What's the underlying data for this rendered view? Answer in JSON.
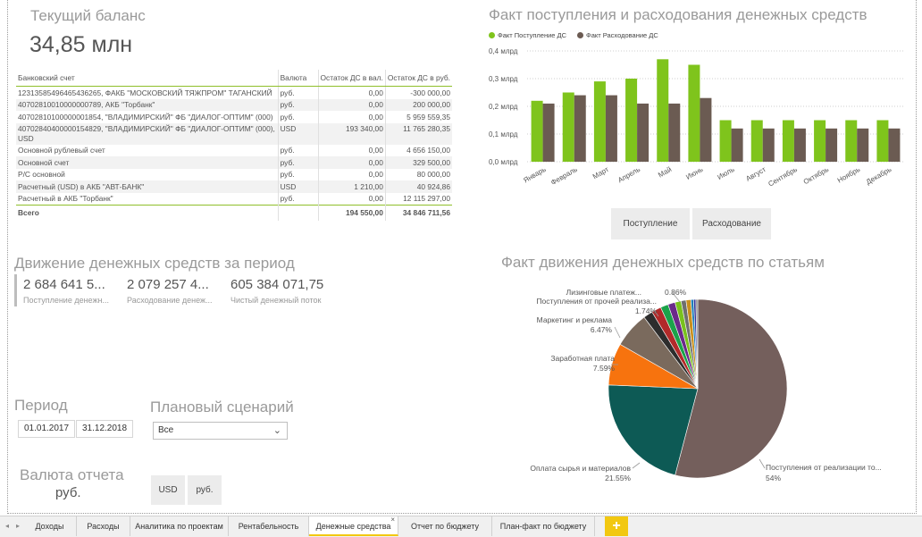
{
  "balance": {
    "title": "Текущий баланс",
    "value": "34,85 млн",
    "columns": [
      "Банковский счет",
      "Валюта",
      "Остаток ДС в вал.",
      "Остаток ДС в руб."
    ],
    "rows": [
      {
        "account": "12313585496465436265, ФАКБ \"МОСКОВСКИЙ ТЯЖПРОМ\" ТАГАНСКИЙ",
        "currency": "руб.",
        "in_currency": "0,00",
        "in_rub": "-300 000,00"
      },
      {
        "account": "40702810010000000789, АКБ \"Торбанк\"",
        "currency": "руб.",
        "in_currency": "0,00",
        "in_rub": "200 000,00"
      },
      {
        "account": "40702810100000001854, \"ВЛАДИМИРСКИЙ\" ФБ \"ДИАЛОГ-ОПТИМ\" (000)",
        "currency": "руб.",
        "in_currency": "0,00",
        "in_rub": "5 959 559,35"
      },
      {
        "account": "40702840400000154829, \"ВЛАДИМИРСКИЙ\" ФБ \"ДИАЛОГ-ОПТИМ\" (000), USD",
        "currency": "USD",
        "in_currency": "193 340,00",
        "in_rub": "11 765 280,35"
      },
      {
        "account": "Основной рублевый счет",
        "currency": "руб.",
        "in_currency": "0,00",
        "in_rub": "4 656 150,00"
      },
      {
        "account": "Основной счет",
        "currency": "руб.",
        "in_currency": "0,00",
        "in_rub": "329 500,00"
      },
      {
        "account": "Р/С основной",
        "currency": "руб.",
        "in_currency": "0,00",
        "in_rub": "80 000,00"
      },
      {
        "account": "Расчетный (USD) в АКБ \"АВТ-БАНК\"",
        "currency": "USD",
        "in_currency": "1 210,00",
        "in_rub": "40 924,86"
      },
      {
        "account": "Расчетный в АКБ \"Торбанк\"",
        "currency": "руб.",
        "in_currency": "0,00",
        "in_rub": "12 115 297,00"
      }
    ],
    "total": {
      "label": "Всего",
      "in_currency": "194 550,00",
      "in_rub": "34 846 711,56"
    }
  },
  "movement": {
    "title": "Движение денежных средств за период",
    "kpis": [
      {
        "value": "2 684 641 5...",
        "label": "Поступление денежн..."
      },
      {
        "value": "2 079 257 4...",
        "label": "Расходование денеж..."
      },
      {
        "value": "605 384 071,75",
        "label": "Чистый денежный поток"
      }
    ]
  },
  "period": {
    "title": "Период",
    "from": "01.01.2017",
    "to": "31.12.2018"
  },
  "scenario": {
    "title": "Плановый сценарий",
    "value": "Все"
  },
  "currency": {
    "title": "Валюта отчета",
    "value": "руб.",
    "buttons": [
      "USD",
      "руб."
    ]
  },
  "bar_chart": {
    "title": "Факт поступления и расходования денежных средств",
    "toggle_buttons": [
      "Поступление",
      "Расходование"
    ],
    "colors": {
      "income": "#7fc41c",
      "expense": "#6b5b52"
    }
  },
  "pie_chart": {
    "title": "Факт движения денежных средств по статьям",
    "colors": {
      "main": "#745f5c",
      "raw": "#0d5a55",
      "salary": "#f7730e",
      "marketing": "#7a6a5d",
      "other": "#8a7a70"
    }
  },
  "chart_data": [
    {
      "type": "bar",
      "title": "Факт поступления и расходования денежных средств",
      "categories": [
        "Январь",
        "Февраль",
        "Март",
        "Апрель",
        "Май",
        "Июнь",
        "Июль",
        "Август",
        "Сентябрь",
        "Октябрь",
        "Ноябрь",
        "Декабрь"
      ],
      "series": [
        {
          "name": "Факт Поступление ДС",
          "values": [
            0.22,
            0.25,
            0.29,
            0.3,
            0.37,
            0.35,
            0.15,
            0.15,
            0.15,
            0.15,
            0.15,
            0.15
          ]
        },
        {
          "name": "Факт Расходование ДС",
          "values": [
            0.21,
            0.24,
            0.24,
            0.21,
            0.21,
            0.23,
            0.12,
            0.12,
            0.12,
            0.12,
            0.12,
            0.12
          ]
        }
      ],
      "y_ticks": [
        "0,0 млрд",
        "0,1 млрд",
        "0,2 млрд",
        "0,3 млрд",
        "0,4 млрд"
      ],
      "ylim": [
        0,
        0.4
      ],
      "legend": "top-left",
      "grid": true
    },
    {
      "type": "pie",
      "title": "Факт движения денежных средств по статьям",
      "slices": [
        {
          "label": "Поступления от реализации то...",
          "pct_label": "54%",
          "value": 54.0,
          "color": "#745f5c"
        },
        {
          "label": "Оплата сырья и материалов",
          "pct_label": "21.55%",
          "value": 21.55,
          "color": "#0d5a55"
        },
        {
          "label": "Заработная плата",
          "pct_label": "7.59%",
          "value": 7.59,
          "color": "#f7730e"
        },
        {
          "label": "Маркетинг и реклама",
          "pct_label": "6.47%",
          "value": 6.47,
          "color": "#7a6a5d"
        },
        {
          "label": "",
          "pct_label": "",
          "value": 1.7,
          "color": "#2d2d2d"
        },
        {
          "label": "Поступления от прочей реализа...",
          "pct_label": "1.74%",
          "value": 1.74,
          "color": "#b22a2a"
        },
        {
          "label": "",
          "pct_label": "",
          "value": 1.4,
          "color": "#1ba34a"
        },
        {
          "label": "",
          "pct_label": "",
          "value": 1.3,
          "color": "#6b2a8a"
        },
        {
          "label": "",
          "pct_label": "",
          "value": 1.1,
          "color": "#79c11d"
        },
        {
          "label": "",
          "pct_label": "",
          "value": 0.9,
          "color": "#6f6f6f"
        },
        {
          "label": "Лизинговые платеж...",
          "pct_label": "0.86%",
          "value": 0.86,
          "color": "#c98f1c"
        },
        {
          "label": "",
          "pct_label": "",
          "value": 0.5,
          "color": "#1e7fb8"
        },
        {
          "label": "",
          "pct_label": "",
          "value": 0.4,
          "color": "#333399"
        },
        {
          "label": "",
          "pct_label": "",
          "value": 0.34,
          "color": "#888888"
        }
      ]
    }
  ],
  "tabs": {
    "items": [
      "Доходы",
      "Расходы",
      "Аналитика по проектам",
      "Рентабельность",
      "Денежные средства",
      "Отчет по бюджету",
      "План-факт по бюджету"
    ],
    "active_index": 4,
    "close_glyph": "×",
    "add_glyph": "+",
    "prev_glyph": "◂",
    "next_glyph": "▸"
  }
}
